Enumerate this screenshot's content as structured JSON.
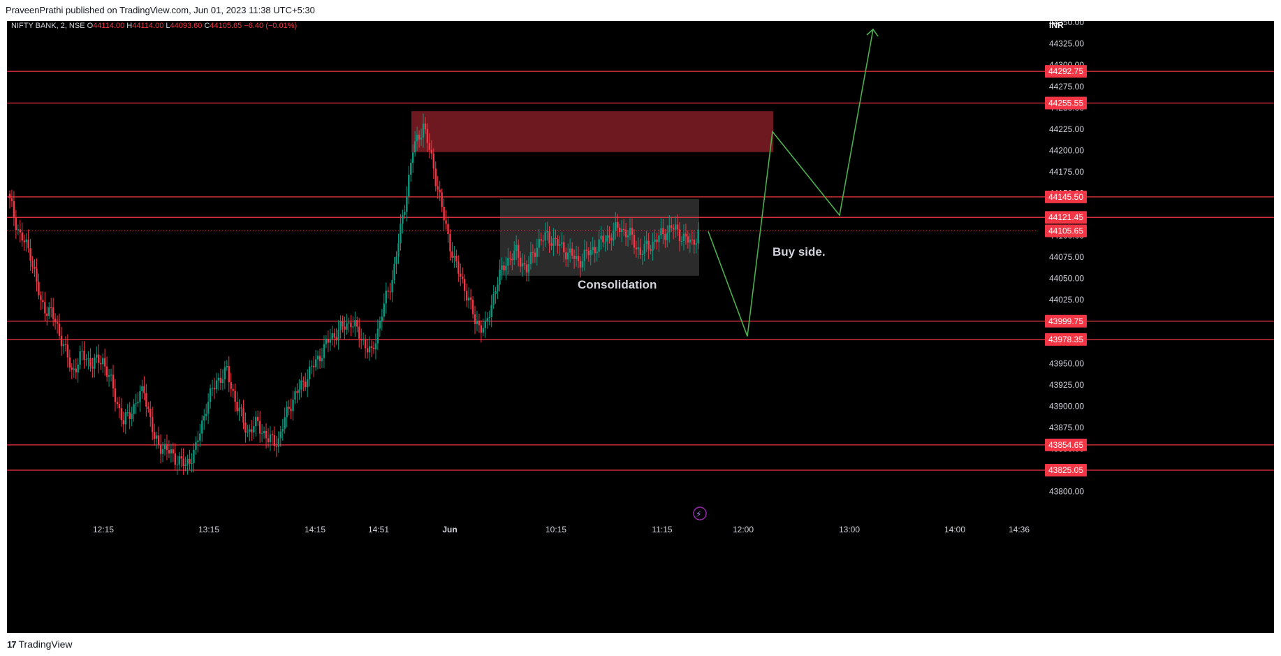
{
  "header": {
    "publisher_line": "PraveenPrathi published on TradingView.com, Jun 01, 2023 11:38 UTC+5:30"
  },
  "footer": {
    "logo_text": "TradingView"
  },
  "colors": {
    "background": "#000000",
    "up_candle": "#089981",
    "down_candle": "#f23645",
    "level_line": "#f23645",
    "supply_zone": "#7a1c22",
    "consolidation_box": "#3a3a3a",
    "projection_arrow": "#4caf50",
    "axis_text": "#d1d4dc"
  },
  "chart_data": {
    "type": "candlestick",
    "symbol_line": {
      "symbol": "NIFTY BANK, 2, NSE",
      "open_label": "O",
      "open": "44114.00",
      "high_label": "H",
      "high": "44114.00",
      "low_label": "L",
      "low": "44093.60",
      "close_label": "C",
      "close": "44105.65",
      "change": "−6.40 (−0.01%)"
    },
    "currency": "INR",
    "ylim": [
      43780,
      44360
    ],
    "y_ticks": [
      "44350.00",
      "44325.00",
      "44300.00",
      "44275.00",
      "44250.00",
      "44225.00",
      "44200.00",
      "44175.00",
      "44150.00",
      "44125.00",
      "44100.00",
      "44075.00",
      "44050.00",
      "44025.00",
      "44000.00",
      "43975.00",
      "43950.00",
      "43925.00",
      "43900.00",
      "43875.00",
      "43850.00",
      "43825.00",
      "43800.00"
    ],
    "x_ticks": [
      "12:15",
      "13:15",
      "14:15",
      "14:51",
      "Jun",
      "10:15",
      "11:15",
      "12:00",
      "13:00",
      "14:00",
      "14:36"
    ],
    "horizontal_levels": [
      {
        "price": 44292.75,
        "label": "44292.75"
      },
      {
        "price": 44255.55,
        "label": "44255.55"
      },
      {
        "price": 44145.5,
        "label": "44145.50"
      },
      {
        "price": 44121.45,
        "label": "44121.45"
      },
      {
        "price": 43999.75,
        "label": "43999.75"
      },
      {
        "price": 43978.35,
        "label": "43978.35"
      },
      {
        "price": 43854.65,
        "label": "43854.65"
      },
      {
        "price": 43825.05,
        "label": "43825.05"
      }
    ],
    "last_price": {
      "price": 44105.65,
      "label": "44105.65"
    },
    "zones": [
      {
        "kind": "supply",
        "top": 44246,
        "bottom": 44198
      },
      {
        "kind": "consolidation",
        "top": 44143,
        "bottom": 44053,
        "label": "Consolidation"
      }
    ],
    "annotations": [
      {
        "text": "Buy side."
      }
    ],
    "projection_path_prices": [
      44105,
      43982,
      44222,
      44124,
      44342
    ],
    "candle_anchor_closes": [
      44140,
      44100,
      44080,
      44020,
      44010,
      43980,
      43940,
      43960,
      43950,
      43955,
      43920,
      43880,
      43900,
      43920,
      43860,
      43850,
      43840,
      43830,
      43850,
      43900,
      43930,
      43940,
      43900,
      43870,
      43880,
      43860,
      43860,
      43900,
      43920,
      43940,
      43960,
      43980,
      43990,
      44000,
      43980,
      43960,
      44010,
      44050,
      44120,
      44200,
      44230,
      44180,
      44120,
      44070,
      44040,
      44000,
      43990,
      44040,
      44070,
      44080,
      44060,
      44090,
      44100,
      44090,
      44080,
      44070,
      44080,
      44090,
      44100,
      44110,
      44100,
      44080,
      44090,
      44100,
      44110,
      44100,
      44090,
      44105
    ],
    "candle_anchor_index": [
      0,
      5,
      10,
      15,
      20,
      25,
      30,
      35,
      40,
      45,
      50,
      55,
      60,
      65,
      70,
      75,
      80,
      85,
      90,
      95,
      100,
      105,
      110,
      115,
      120,
      125,
      130,
      135,
      140,
      145,
      150,
      155,
      160,
      165,
      170,
      175,
      180,
      185,
      190,
      195,
      200,
      205,
      210,
      215,
      220,
      225,
      230,
      235,
      240,
      245,
      250,
      255,
      260,
      265,
      270,
      275,
      280,
      285,
      290,
      295,
      300,
      305,
      310,
      315,
      320,
      325,
      330,
      333
    ]
  }
}
